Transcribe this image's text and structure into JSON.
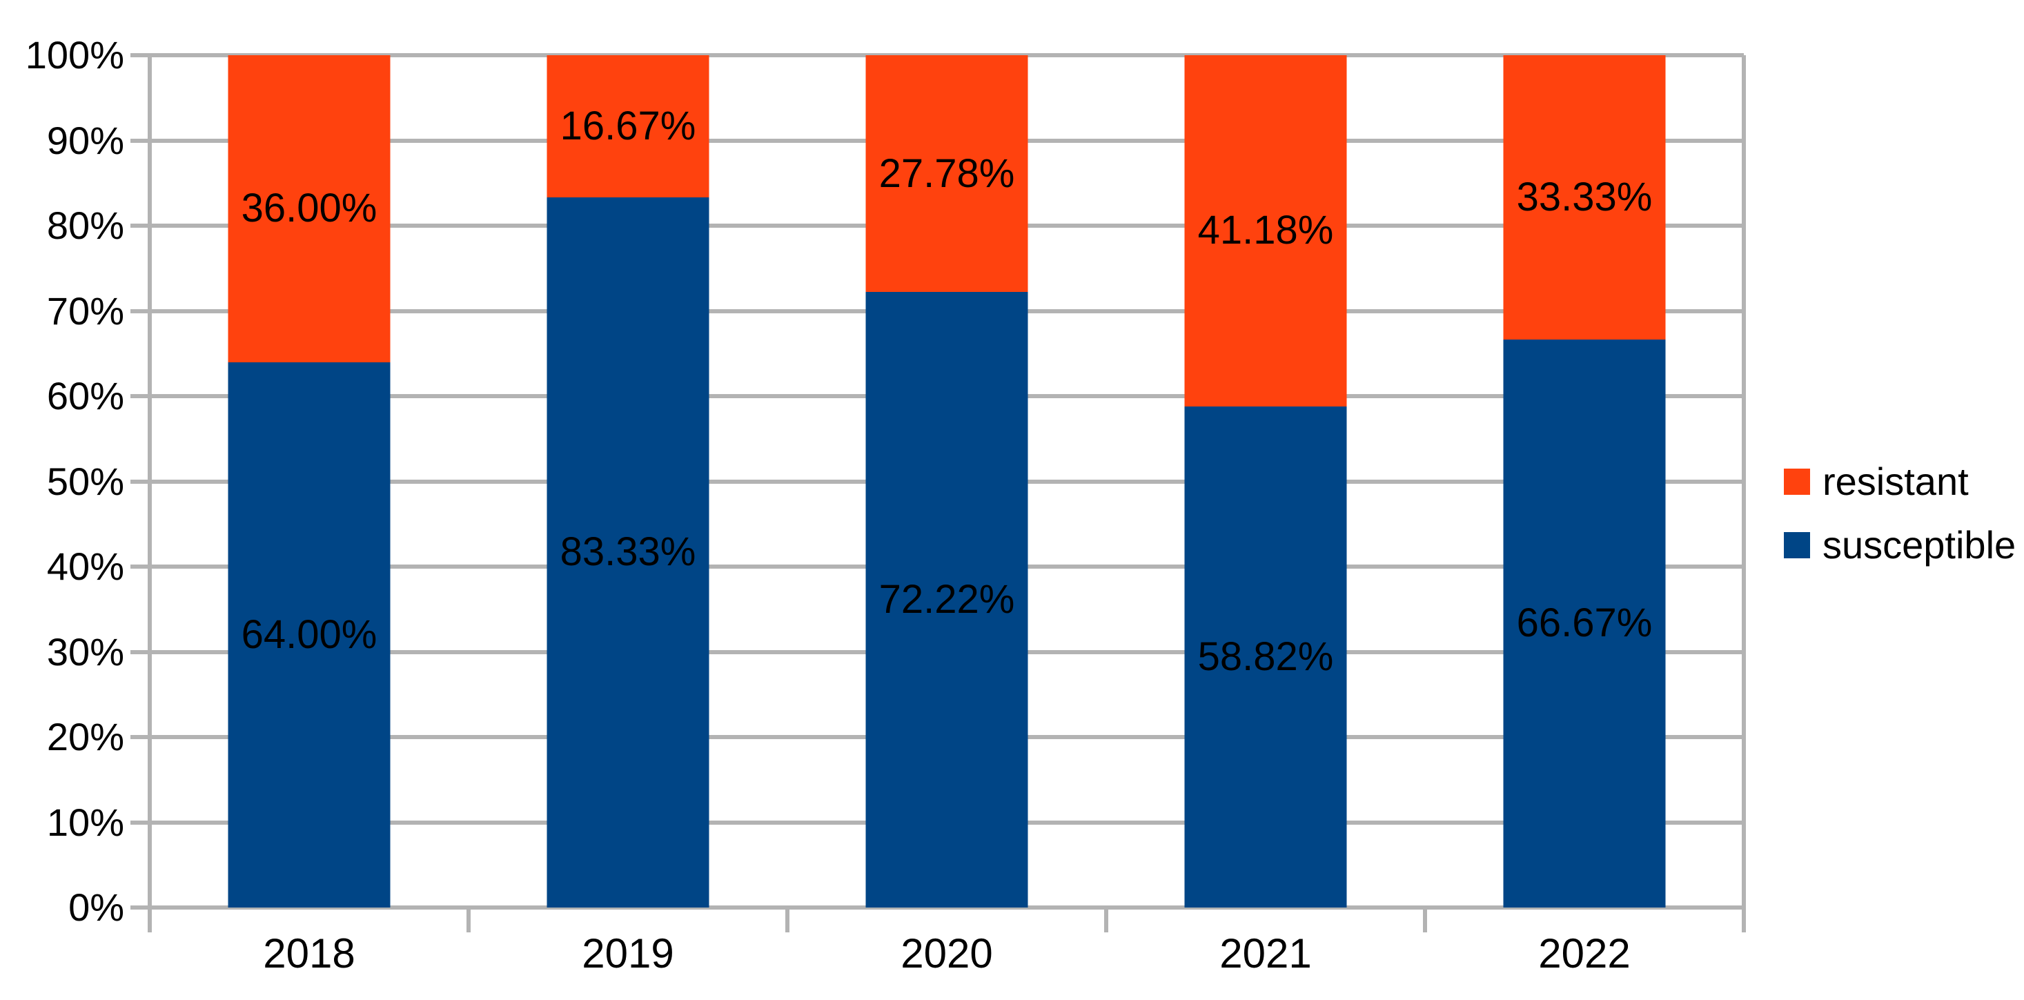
{
  "chart_data": {
    "type": "bar",
    "variant": "stacked-percent-column",
    "title": "",
    "xlabel": "",
    "ylabel": "",
    "categories": [
      "2018",
      "2019",
      "2020",
      "2021",
      "2022"
    ],
    "series": [
      {
        "name": "susceptible",
        "color": "#004586",
        "values": [
          64.0,
          83.33,
          72.22,
          58.82,
          66.67
        ],
        "labels": [
          "64.00%",
          "83.33%",
          "72.22%",
          "58.82%",
          "66.67%"
        ]
      },
      {
        "name": "resistant",
        "color": "#FF420E",
        "values": [
          36.0,
          16.67,
          27.78,
          41.18,
          33.33
        ],
        "labels": [
          "36.00%",
          "16.67%",
          "27.78%",
          "41.18%",
          "33.33%"
        ]
      }
    ],
    "y_axis": {
      "min": 0,
      "max": 100,
      "tick_step": 10,
      "tick_labels": [
        "0%",
        "10%",
        "20%",
        "30%",
        "40%",
        "50%",
        "60%",
        "70%",
        "80%",
        "90%",
        "100%"
      ]
    },
    "legend": {
      "position": "right",
      "entries": [
        {
          "label": "resistant",
          "color": "#FF420E"
        },
        {
          "label": "susceptible",
          "color": "#004586"
        }
      ]
    },
    "grid": true,
    "colors": {
      "gridline": "#b3b3b3",
      "axis": "#b3b3b3",
      "label_text": "#000000",
      "background": "#ffffff"
    }
  }
}
